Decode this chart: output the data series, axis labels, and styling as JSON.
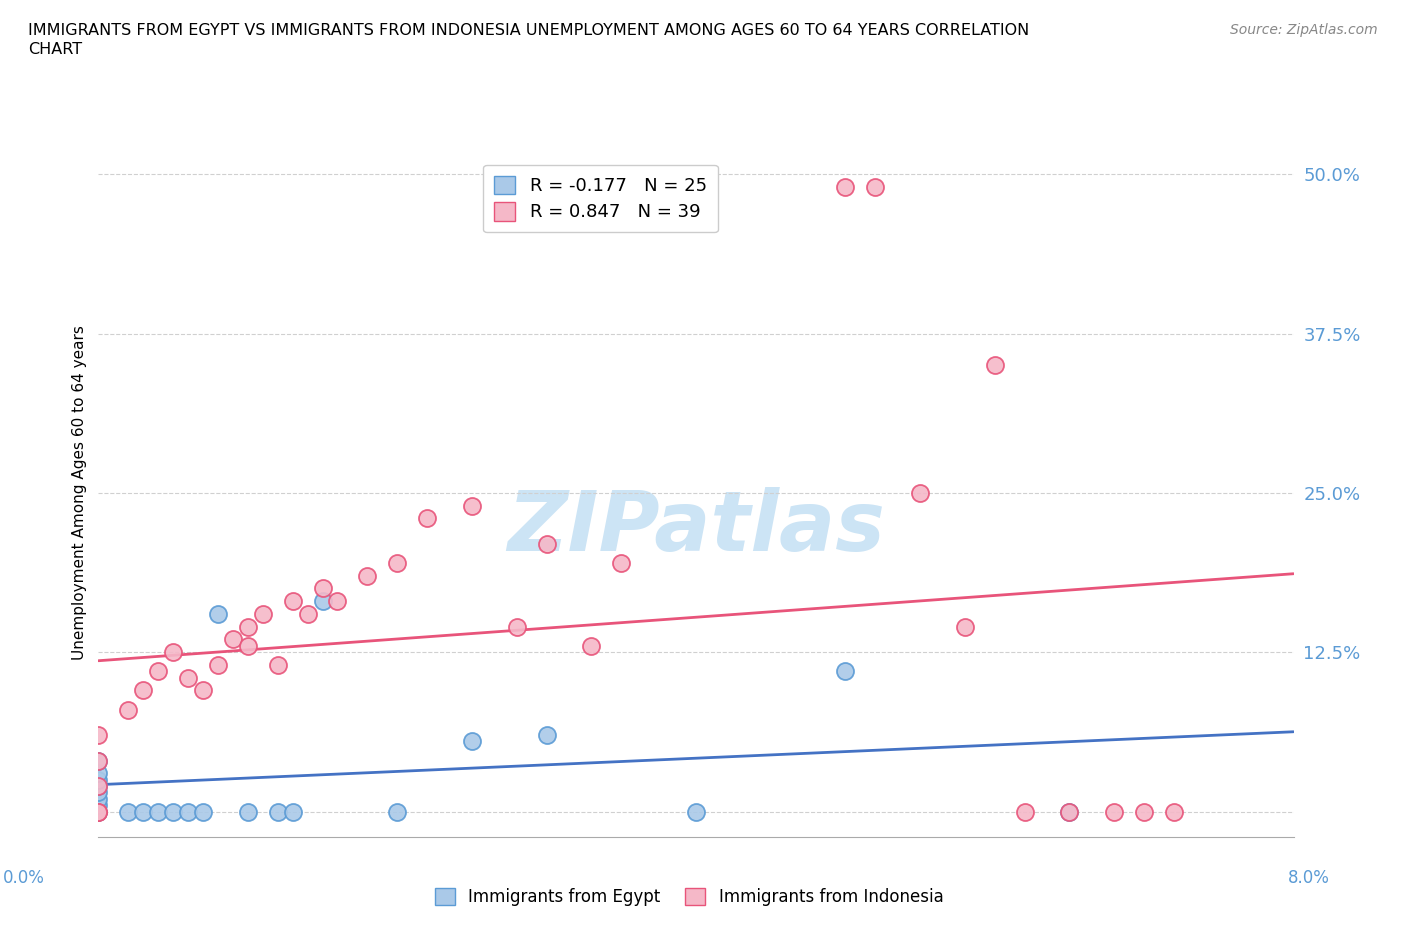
{
  "title_line1": "IMMIGRANTS FROM EGYPT VS IMMIGRANTS FROM INDONESIA UNEMPLOYMENT AMONG AGES 60 TO 64 YEARS CORRELATION",
  "title_line2": "CHART",
  "source": "Source: ZipAtlas.com",
  "ylabel": "Unemployment Among Ages 60 to 64 years",
  "xmin": 0.0,
  "xmax": 0.08,
  "ymin": -0.02,
  "ymax": 0.52,
  "yticks": [
    0.0,
    0.125,
    0.25,
    0.375,
    0.5
  ],
  "ytick_labels": [
    "",
    "12.5%",
    "25.0%",
    "37.5%",
    "50.0%"
  ],
  "egypt_r": -0.177,
  "egypt_n": 25,
  "indonesia_r": 0.847,
  "indonesia_n": 39,
  "egypt_color": "#aac9e8",
  "indonesia_color": "#f5b8c8",
  "egypt_edge_color": "#5b9bd5",
  "indonesia_edge_color": "#e8547a",
  "egypt_line_color": "#4472c4",
  "indonesia_line_color": "#e8547a",
  "grid_color": "#d0d0d0",
  "watermark_color": "#cce4f5",
  "egypt_x": [
    0.0,
    0.0,
    0.0,
    0.0,
    0.0,
    0.0,
    0.0,
    0.0,
    0.002,
    0.003,
    0.004,
    0.005,
    0.006,
    0.007,
    0.008,
    0.01,
    0.012,
    0.013,
    0.015,
    0.02,
    0.025,
    0.03,
    0.04,
    0.05,
    0.065
  ],
  "egypt_y": [
    0.0,
    0.005,
    0.01,
    0.015,
    0.02,
    0.025,
    0.03,
    0.04,
    0.0,
    0.0,
    0.0,
    0.0,
    0.0,
    0.0,
    0.155,
    0.0,
    0.0,
    0.0,
    0.165,
    0.0,
    0.055,
    0.06,
    0.0,
    0.11,
    0.0
  ],
  "indonesia_x": [
    0.0,
    0.0,
    0.0,
    0.0,
    0.0,
    0.002,
    0.003,
    0.004,
    0.005,
    0.006,
    0.007,
    0.008,
    0.009,
    0.01,
    0.01,
    0.011,
    0.012,
    0.013,
    0.014,
    0.015,
    0.016,
    0.018,
    0.02,
    0.022,
    0.025,
    0.028,
    0.03,
    0.033,
    0.035,
    0.05,
    0.052,
    0.055,
    0.058,
    0.06,
    0.062,
    0.065,
    0.068,
    0.07,
    0.072
  ],
  "indonesia_y": [
    0.0,
    0.0,
    0.02,
    0.04,
    0.06,
    0.08,
    0.095,
    0.11,
    0.125,
    0.105,
    0.095,
    0.115,
    0.135,
    0.13,
    0.145,
    0.155,
    0.115,
    0.165,
    0.155,
    0.175,
    0.165,
    0.185,
    0.195,
    0.23,
    0.24,
    0.145,
    0.21,
    0.13,
    0.195,
    0.49,
    0.49,
    0.25,
    0.145,
    0.35,
    0.0,
    0.0,
    0.0,
    0.0,
    0.0
  ]
}
